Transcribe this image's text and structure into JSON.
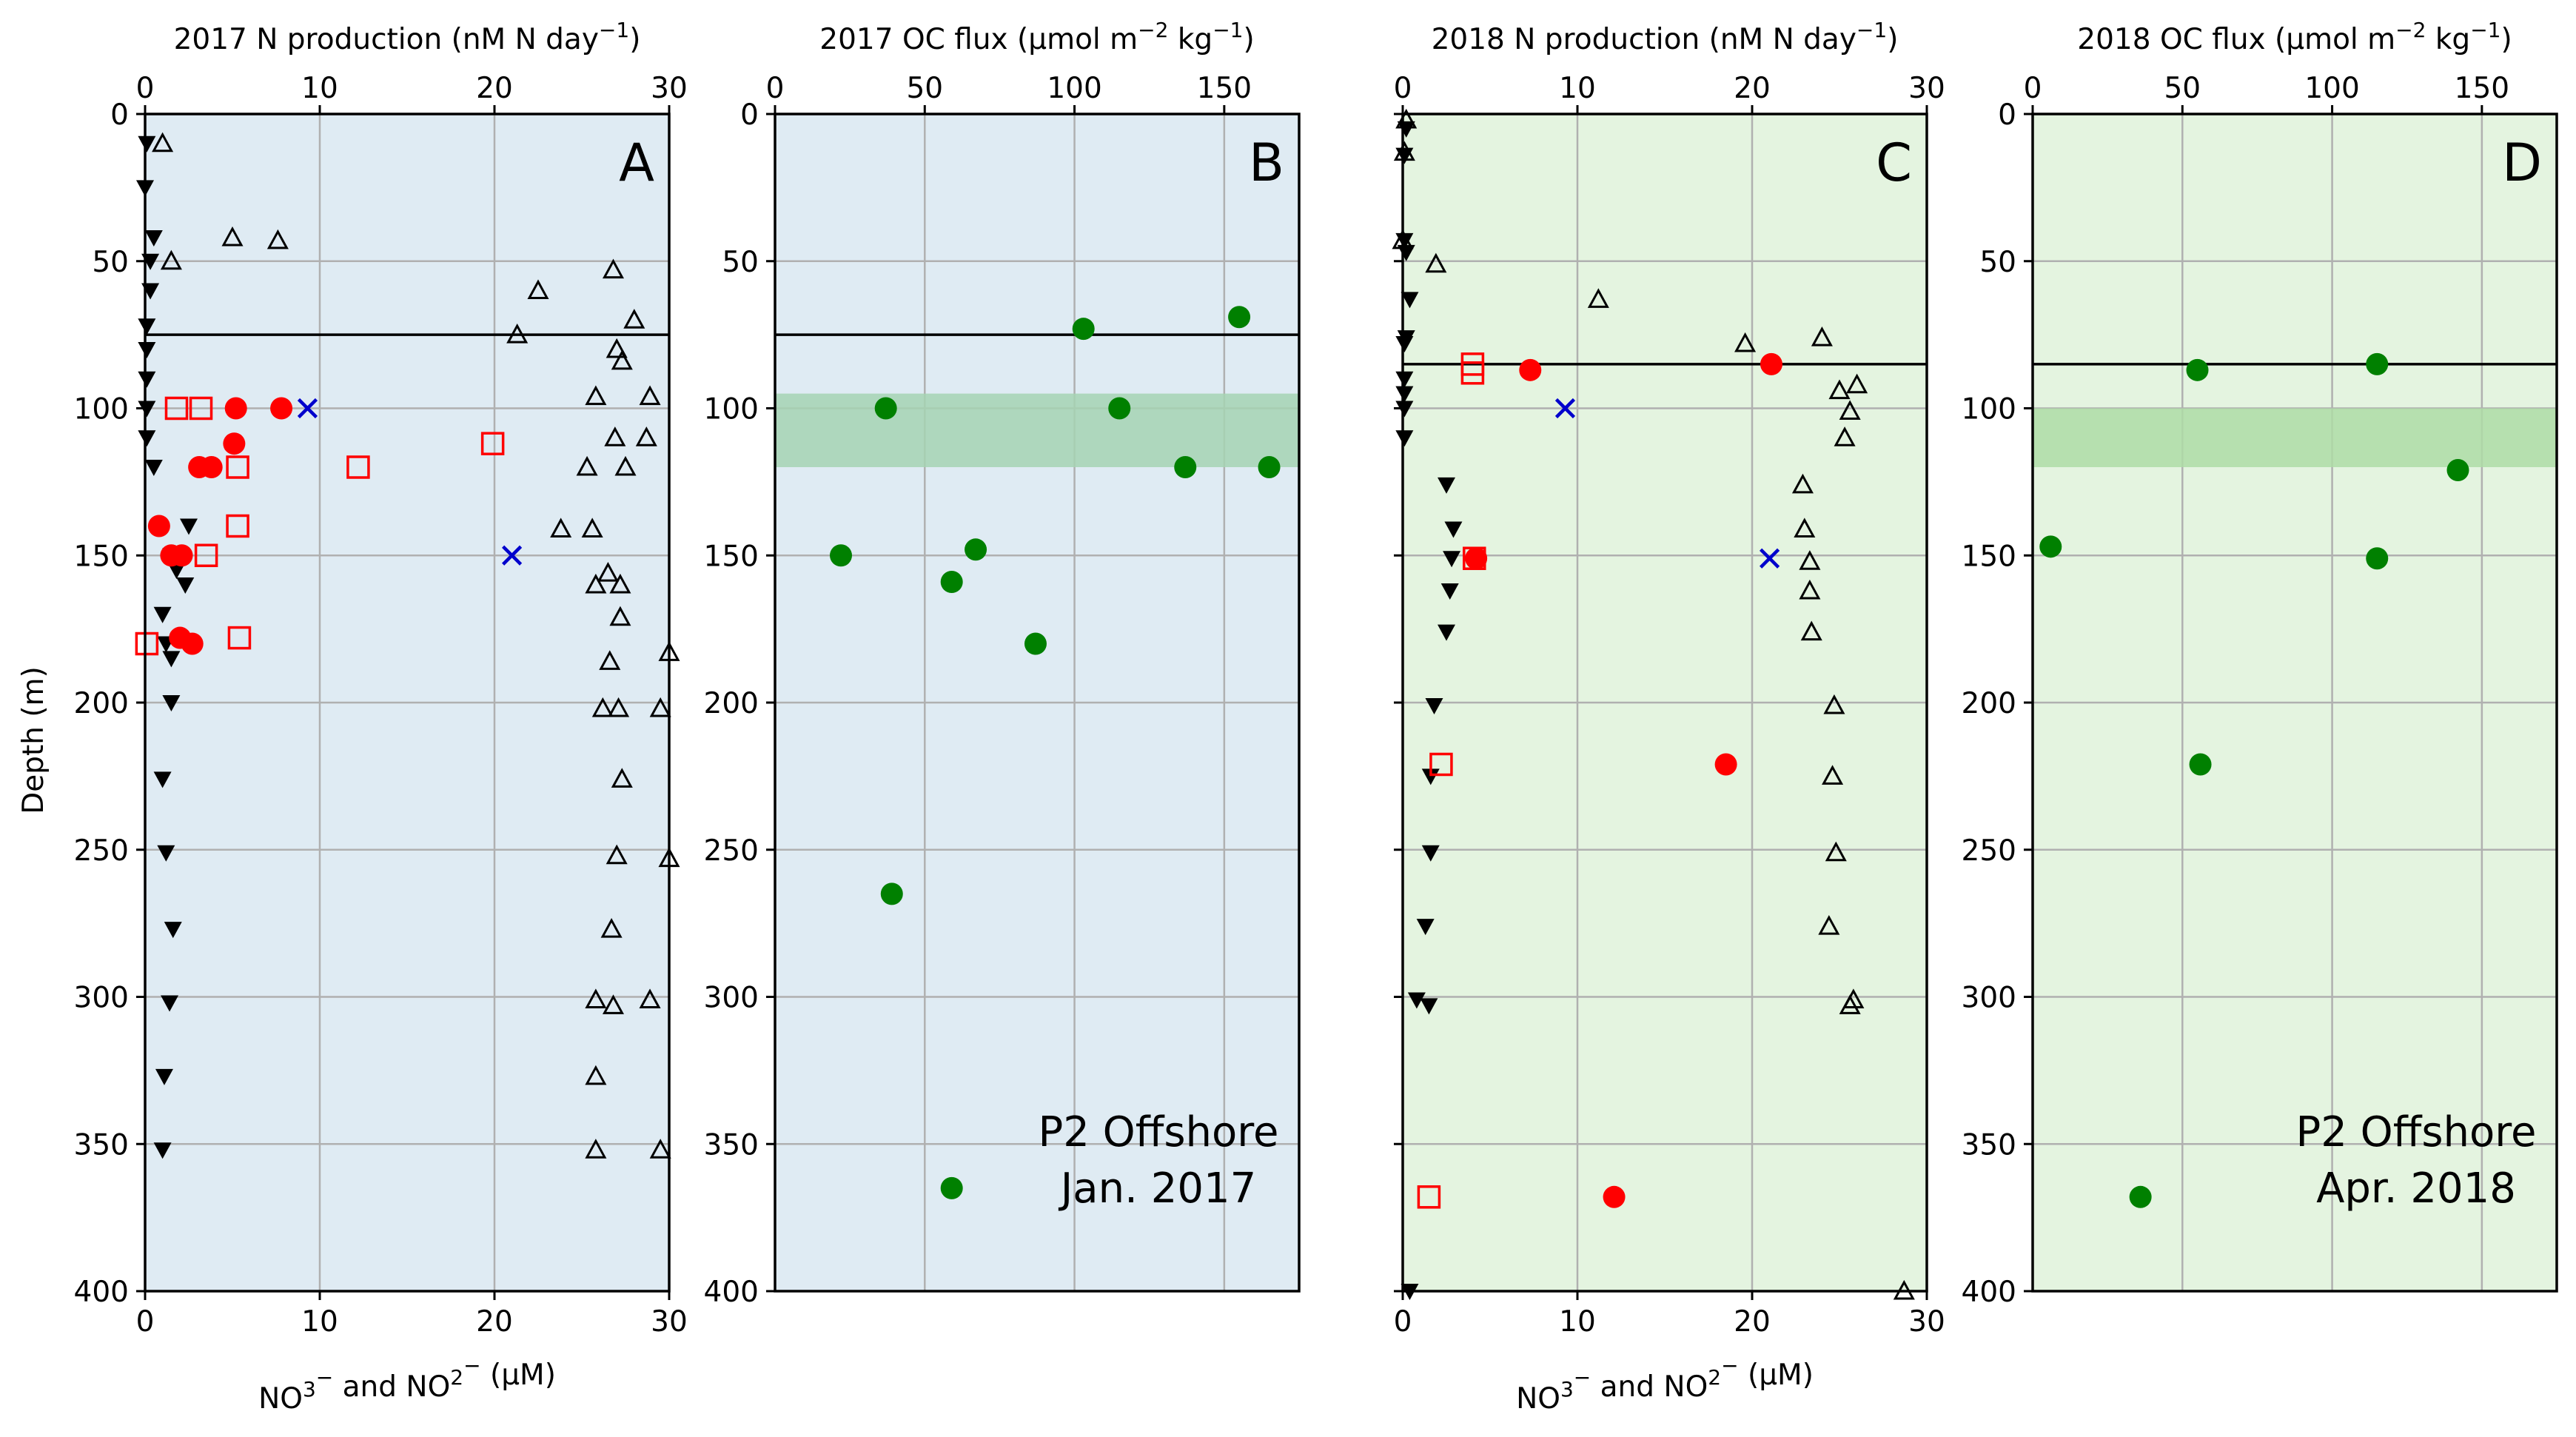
{
  "figure": {
    "y_label": "Depth (m)",
    "bottom_x_label": "NO$_3^-$ and NO$_2^-$ ($\\mu$M)",
    "bottom_x_label_display": [
      "NO",
      "3",
      "−",
      " and NO",
      "2",
      "−",
      " (",
      "μ",
      "M)"
    ]
  },
  "colors": {
    "panel_2017_bg": "#dfebf3",
    "panel_2018_bg": "#e4f4e0",
    "grid": "#b0b0b0",
    "n_production": "#ff0000",
    "cross_marker": "#0000cc",
    "oc_flux": "#008000",
    "band_2017": "#a6d3b3",
    "band_2018": "#aedca6",
    "ink": "#000000"
  },
  "chart_data": [
    {
      "panel": "A",
      "type": "scatter",
      "title": "2017 N production (nM N day$^{-1}$)",
      "title_display": [
        "2017 N production (nM N day",
        "−1",
        ")"
      ],
      "note": "",
      "ylim": [
        400,
        0
      ],
      "yticks": [
        0,
        50,
        100,
        150,
        200,
        250,
        300,
        350,
        400
      ],
      "ytick_labels": [
        "0",
        "50",
        "100",
        "150",
        "200",
        "250",
        "300",
        "350",
        "400"
      ],
      "top_xlim": [
        0,
        30
      ],
      "top_xticks": [
        "0",
        "10",
        "20",
        "30"
      ],
      "bottom_xlim": [
        0,
        30
      ],
      "bottom_xticks": [
        "0",
        "10",
        "20",
        "30"
      ],
      "grid": true,
      "hline_depth": 75,
      "band": null,
      "series": [
        {
          "marker": "triangle-down",
          "axis": "bottom",
          "points": [
            [
              0.1,
              10
            ],
            [
              0.0,
              25
            ],
            [
              0.5,
              42
            ],
            [
              0.3,
              50
            ],
            [
              0.3,
              60
            ],
            [
              0.1,
              72
            ],
            [
              0.1,
              80
            ],
            [
              0.1,
              90
            ],
            [
              0.1,
              100
            ],
            [
              0.1,
              110
            ],
            [
              0.5,
              120
            ],
            [
              2.5,
              140
            ],
            [
              1.5,
              150
            ],
            [
              1.8,
              155
            ],
            [
              2.3,
              160
            ],
            [
              1.0,
              170
            ],
            [
              1.2,
              180
            ],
            [
              1.5,
              185
            ],
            [
              1.5,
              200
            ],
            [
              1.0,
              226
            ],
            [
              1.2,
              251
            ],
            [
              1.6,
              277
            ],
            [
              1.4,
              302
            ],
            [
              1.1,
              327
            ],
            [
              1.0,
              352
            ]
          ]
        },
        {
          "marker": "triangle-up-open",
          "axis": "bottom",
          "points": [
            [
              1.0,
              10
            ],
            [
              5.0,
              42
            ],
            [
              7.6,
              43
            ],
            [
              1.5,
              50
            ],
            [
              26.8,
              53
            ],
            [
              22.5,
              60
            ],
            [
              28.0,
              70
            ],
            [
              21.3,
              75
            ],
            [
              27.0,
              80
            ],
            [
              27.3,
              84
            ],
            [
              25.8,
              96
            ],
            [
              28.9,
              96
            ],
            [
              26.9,
              110
            ],
            [
              28.7,
              110
            ],
            [
              25.3,
              120
            ],
            [
              27.5,
              120
            ],
            [
              23.8,
              141
            ],
            [
              25.6,
              141
            ],
            [
              26.5,
              156
            ],
            [
              27.2,
              160
            ],
            [
              25.8,
              160
            ],
            [
              27.2,
              171
            ],
            [
              30.0,
              183
            ],
            [
              26.6,
              186
            ],
            [
              26.2,
              202
            ],
            [
              27.1,
              202
            ],
            [
              29.5,
              202
            ],
            [
              27.3,
              226
            ],
            [
              27.0,
              252
            ],
            [
              30.0,
              253
            ],
            [
              26.7,
              277
            ],
            [
              25.8,
              301
            ],
            [
              26.8,
              303
            ],
            [
              28.9,
              301
            ],
            [
              25.8,
              327
            ],
            [
              25.8,
              352
            ],
            [
              29.5,
              352
            ]
          ]
        },
        {
          "marker": "circle",
          "axis": "top",
          "points": [
            [
              5.2,
              100
            ],
            [
              7.8,
              100
            ],
            [
              5.1,
              112
            ],
            [
              3.1,
              120
            ],
            [
              3.8,
              120
            ],
            [
              0.8,
              140
            ],
            [
              1.5,
              150
            ],
            [
              2.1,
              150
            ],
            [
              2.0,
              178
            ],
            [
              2.7,
              180
            ]
          ]
        },
        {
          "marker": "square-open",
          "axis": "top",
          "points": [
            [
              1.8,
              100
            ],
            [
              3.2,
              100
            ],
            [
              19.9,
              112
            ],
            [
              5.3,
              120
            ],
            [
              12.2,
              120
            ],
            [
              5.3,
              140
            ],
            [
              3.5,
              150
            ],
            [
              5.4,
              178
            ],
            [
              0.1,
              180
            ]
          ]
        },
        {
          "marker": "x",
          "axis": "bottom",
          "points": [
            [
              9.3,
              100
            ],
            [
              21.0,
              150
            ]
          ]
        }
      ]
    },
    {
      "panel": "B",
      "type": "scatter",
      "title": "2017 OC flux ($\\mu$mol m$^{-2}$ kg$^{-1}$)",
      "title_display": [
        "2017 OC flux (",
        "μ",
        "mol m",
        "−2",
        " kg",
        "−1",
        ")"
      ],
      "note": "P2 Offshore\nJan. 2017",
      "ylim": [
        400,
        0
      ],
      "yticks": [
        0,
        50,
        100,
        150,
        200,
        250,
        300,
        350,
        400
      ],
      "ytick_labels": [
        "0",
        "50",
        "100",
        "150",
        "200",
        "250",
        "300",
        "350",
        "400"
      ],
      "top_xlim": [
        0,
        175
      ],
      "top_xticks": [
        "0",
        "50",
        "100",
        "150"
      ],
      "bottom_xlim": null,
      "bottom_xticks": [],
      "grid": true,
      "hline_depth": 75,
      "band": [
        95,
        120
      ],
      "series": [
        {
          "marker": "circle",
          "axis": "top",
          "points": [
            [
              103,
              73
            ],
            [
              155,
              69
            ],
            [
              37,
              100
            ],
            [
              115,
              100
            ],
            [
              137,
              120
            ],
            [
              165,
              120
            ],
            [
              22,
              150
            ],
            [
              67,
              148
            ],
            [
              59,
              159
            ],
            [
              87,
              180
            ],
            [
              39,
              265
            ],
            [
              59,
              365
            ]
          ]
        }
      ]
    },
    {
      "panel": "C",
      "type": "scatter",
      "title": "2018 N production (nM N day$^{-1}$)",
      "title_display": [
        "2018 N production (nM N day",
        "−1",
        ")"
      ],
      "note": "",
      "ylim": [
        400,
        0
      ],
      "yticks": [
        0,
        50,
        100,
        150,
        200,
        250,
        300,
        350,
        400
      ],
      "ytick_labels": [],
      "top_xlim": [
        0,
        30
      ],
      "top_xticks": [
        "0",
        "10",
        "20",
        "30"
      ],
      "bottom_xlim": [
        0,
        30
      ],
      "bottom_xticks": [
        "0",
        "10",
        "20",
        "30"
      ],
      "grid": true,
      "hline_depth": 85,
      "band": null,
      "series": [
        {
          "marker": "triangle-down",
          "axis": "bottom",
          "points": [
            [
              0.2,
              5
            ],
            [
              0.1,
              14
            ],
            [
              0.1,
              43
            ],
            [
              0.2,
              47
            ],
            [
              0.4,
              63
            ],
            [
              0.2,
              76
            ],
            [
              0.1,
              78
            ],
            [
              0.1,
              90
            ],
            [
              0.1,
              95
            ],
            [
              0.1,
              100
            ],
            [
              0.1,
              110
            ],
            [
              2.5,
              126
            ],
            [
              2.9,
              141
            ],
            [
              2.8,
              151
            ],
            [
              2.7,
              162
            ],
            [
              2.5,
              176
            ],
            [
              1.8,
              201
            ],
            [
              1.6,
              225
            ],
            [
              1.6,
              251
            ],
            [
              1.3,
              276
            ],
            [
              0.8,
              301
            ],
            [
              1.5,
              303
            ],
            [
              0.4,
              400
            ]
          ]
        },
        {
          "marker": "triangle-up-open",
          "axis": "bottom",
          "points": [
            [
              0.2,
              2
            ],
            [
              0.1,
              13
            ],
            [
              0.0,
              43
            ],
            [
              1.9,
              51
            ],
            [
              11.2,
              63
            ],
            [
              19.6,
              78
            ],
            [
              24.0,
              76
            ],
            [
              25.0,
              94
            ],
            [
              26.0,
              92
            ],
            [
              25.6,
              101
            ],
            [
              25.3,
              110
            ],
            [
              22.9,
              126
            ],
            [
              23.0,
              141
            ],
            [
              23.3,
              152
            ],
            [
              23.3,
              162
            ],
            [
              23.4,
              176
            ],
            [
              24.7,
              201
            ],
            [
              24.6,
              225
            ],
            [
              24.8,
              251
            ],
            [
              24.4,
              276
            ],
            [
              25.8,
              301
            ],
            [
              25.6,
              303
            ],
            [
              28.7,
              400
            ]
          ]
        },
        {
          "marker": "circle",
          "axis": "top",
          "points": [
            [
              7.3,
              87
            ],
            [
              21.1,
              85
            ],
            [
              4.2,
              151
            ],
            [
              18.5,
              221
            ],
            [
              12.1,
              368
            ]
          ]
        },
        {
          "marker": "square-open",
          "axis": "top",
          "points": [
            [
              4.0,
              85
            ],
            [
              4.0,
              88
            ],
            [
              4.1,
              151
            ],
            [
              2.2,
              221
            ],
            [
              1.5,
              368
            ]
          ]
        },
        {
          "marker": "x",
          "axis": "bottom",
          "points": [
            [
              9.3,
              100
            ],
            [
              21.0,
              151
            ]
          ]
        }
      ]
    },
    {
      "panel": "D",
      "type": "scatter",
      "title": "2018 OC flux ($\\mu$mol m$^{-2}$ kg$^{-1}$)",
      "title_display": [
        "2018 OC flux (",
        "μ",
        "mol m",
        "−2",
        " kg",
        "−1",
        ")"
      ],
      "note": "P2 Offshore\nApr. 2018",
      "ylim": [
        400,
        0
      ],
      "yticks": [
        0,
        50,
        100,
        150,
        200,
        250,
        300,
        350,
        400
      ],
      "ytick_labels": [
        "0",
        "50",
        "100",
        "150",
        "200",
        "250",
        "300",
        "350",
        "400"
      ],
      "top_xlim": [
        0,
        175
      ],
      "top_xticks": [
        "0",
        "50",
        "100",
        "150"
      ],
      "bottom_xlim": null,
      "bottom_xticks": [],
      "grid": true,
      "hline_depth": 85,
      "band": [
        100,
        120
      ],
      "series": [
        {
          "marker": "circle",
          "axis": "top",
          "points": [
            [
              55,
              87
            ],
            [
              115,
              85
            ],
            [
              142,
              121
            ],
            [
              6,
              147
            ],
            [
              115,
              151
            ],
            [
              56,
              221
            ],
            [
              36,
              368
            ]
          ]
        }
      ]
    }
  ]
}
